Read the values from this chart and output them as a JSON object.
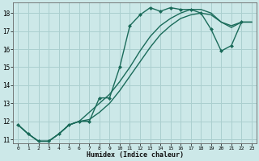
{
  "xlabel": "Humidex (Indice chaleur)",
  "bg_color": "#cce8e8",
  "grid_color": "#aacfcf",
  "line_color": "#1a6b5a",
  "xlim": [
    -0.5,
    23.5
  ],
  "ylim": [
    10.8,
    18.6
  ],
  "xticks": [
    0,
    1,
    2,
    3,
    4,
    5,
    6,
    7,
    8,
    9,
    10,
    11,
    12,
    13,
    14,
    15,
    16,
    17,
    18,
    19,
    20,
    21,
    22,
    23
  ],
  "yticks": [
    11,
    12,
    13,
    14,
    15,
    16,
    17,
    18
  ],
  "lines": [
    {
      "x": [
        0,
        1,
        2,
        3,
        4,
        5,
        6,
        7,
        8,
        9,
        10,
        11,
        12,
        13,
        14,
        15,
        16,
        17,
        18,
        19,
        20,
        21,
        22
      ],
      "y": [
        11.8,
        11.3,
        10.9,
        10.9,
        11.3,
        11.8,
        12.0,
        12.0,
        13.3,
        13.3,
        15.0,
        17.3,
        17.9,
        18.3,
        18.1,
        18.3,
        18.2,
        18.2,
        18.0,
        17.1,
        15.9,
        16.2,
        17.5
      ],
      "marker": "D",
      "lw": 1.0
    },
    {
      "x": [
        0,
        1,
        2,
        3,
        4,
        5,
        6,
        7,
        8,
        9,
        10,
        11,
        12,
        13,
        14,
        15,
        16,
        17,
        18,
        19,
        20,
        21,
        22,
        23
      ],
      "y": [
        11.8,
        11.3,
        10.9,
        10.9,
        11.3,
        11.8,
        12.0,
        12.5,
        13.0,
        13.5,
        14.2,
        15.0,
        15.9,
        16.7,
        17.3,
        17.7,
        18.0,
        18.2,
        18.2,
        18.0,
        17.5,
        17.2,
        17.5,
        17.5
      ],
      "marker": null,
      "lw": 1.0
    },
    {
      "x": [
        0,
        1,
        2,
        3,
        4,
        5,
        6,
        7,
        8,
        9,
        10,
        11,
        12,
        13,
        14,
        15,
        16,
        17,
        18,
        19,
        20,
        21,
        22,
        23
      ],
      "y": [
        11.8,
        11.3,
        10.9,
        10.9,
        11.3,
        11.8,
        12.0,
        12.1,
        12.5,
        13.0,
        13.7,
        14.5,
        15.3,
        16.1,
        16.8,
        17.3,
        17.7,
        17.9,
        18.0,
        17.9,
        17.5,
        17.3,
        17.5,
        17.5
      ],
      "marker": null,
      "lw": 1.0
    }
  ]
}
